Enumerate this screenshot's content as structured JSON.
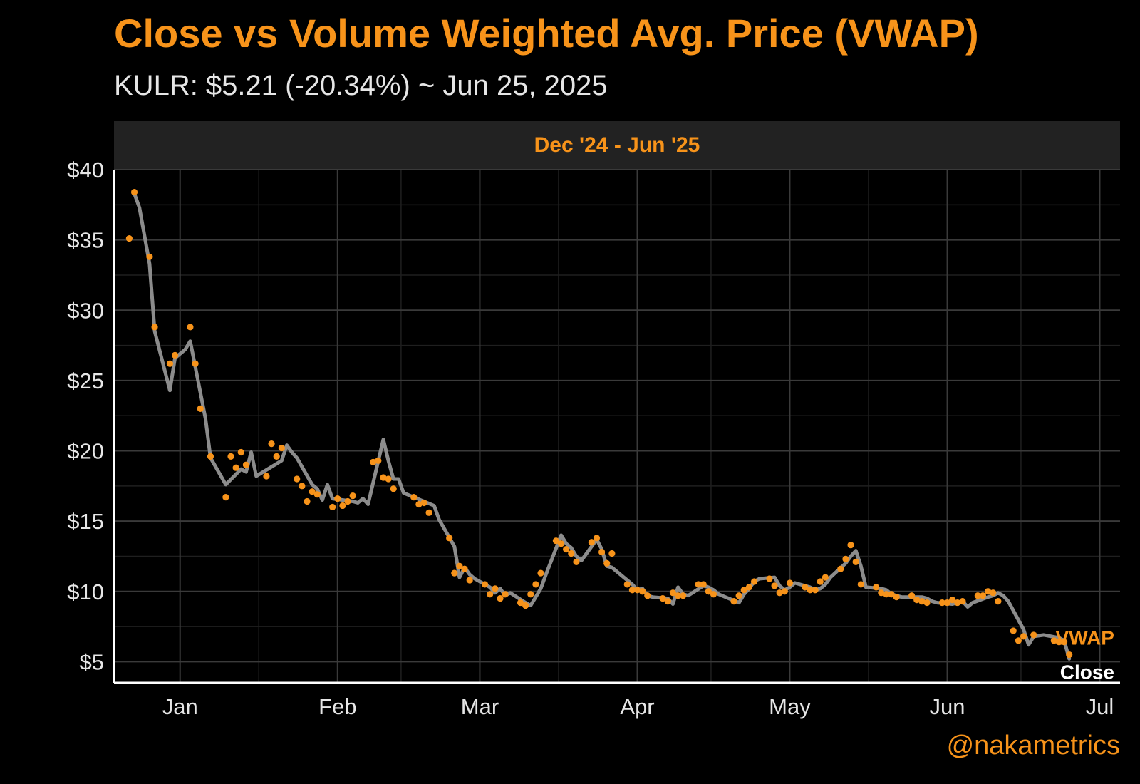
{
  "header": {
    "title": "Close vs Volume Weighted Avg. Price (VWAP)",
    "subtitle": "KULR: $5.21 (-20.34%) ~ Jun 25, 2025",
    "period": "Dec '24 - Jun '25",
    "credit": "@nakametrics"
  },
  "colors": {
    "vwap": "#f7931a",
    "close": "#8c8c8c",
    "background": "#000000",
    "grid": "#3a3a3a"
  },
  "chart_data": {
    "type": "line",
    "title": "Close vs Volume Weighted Avg. Price (VWAP)",
    "subtitle": "KULR: $5.21 (-20.34%) ~ Jun 25, 2025",
    "facet": "Dec '24 - Jun '25",
    "x_type": "date",
    "xlim": [
      "2024-12-19",
      "2025-07-05"
    ],
    "ylim": [
      3.5,
      40
    ],
    "x_ticks": [
      {
        "date": "2025-01-01",
        "label": "Jan"
      },
      {
        "date": "2025-02-01",
        "label": "Feb"
      },
      {
        "date": "2025-03-01",
        "label": "Mar"
      },
      {
        "date": "2025-04-01",
        "label": "Apr"
      },
      {
        "date": "2025-05-01",
        "label": "May"
      },
      {
        "date": "2025-06-01",
        "label": "Jun"
      },
      {
        "date": "2025-07-01",
        "label": "Jul"
      }
    ],
    "y_ticks": [
      {
        "value": 5,
        "label": "$5"
      },
      {
        "value": 10,
        "label": "$10"
      },
      {
        "value": 15,
        "label": "$15"
      },
      {
        "value": 20,
        "label": "$20"
      },
      {
        "value": 25,
        "label": "$25"
      },
      {
        "value": 30,
        "label": "$30"
      },
      {
        "value": 35,
        "label": "$35"
      },
      {
        "value": 40,
        "label": "$40"
      }
    ],
    "grid": true,
    "series": [
      {
        "name": "Close",
        "style": "line",
        "points": [
          [
            "2024-12-23",
            38.3
          ],
          [
            "2024-12-24",
            37.3
          ],
          [
            "2024-12-26",
            33.3
          ],
          [
            "2024-12-27",
            28.5
          ],
          [
            "2024-12-30",
            24.3
          ],
          [
            "2024-12-31",
            26.6
          ],
          [
            "2025-01-02",
            27.2
          ],
          [
            "2025-01-03",
            27.8
          ],
          [
            "2025-01-06",
            22.3
          ],
          [
            "2025-01-07",
            19.5
          ],
          [
            "2025-01-10",
            17.6
          ],
          [
            "2025-01-13",
            18.7
          ],
          [
            "2025-01-14",
            18.5
          ],
          [
            "2025-01-15",
            19.9
          ],
          [
            "2025-01-16",
            18.2
          ],
          [
            "2025-01-21",
            19.3
          ],
          [
            "2025-01-22",
            20.4
          ],
          [
            "2025-01-23",
            19.9
          ],
          [
            "2025-01-24",
            19.5
          ],
          [
            "2025-01-27",
            17.6
          ],
          [
            "2025-01-28",
            17.3
          ],
          [
            "2025-01-29",
            16.5
          ],
          [
            "2025-01-30",
            17.6
          ],
          [
            "2025-01-31",
            16.6
          ],
          [
            "2025-02-04",
            16.4
          ],
          [
            "2025-02-05",
            16.3
          ],
          [
            "2025-02-06",
            16.6
          ],
          [
            "2025-02-07",
            16.2
          ],
          [
            "2025-02-10",
            20.8
          ],
          [
            "2025-02-11",
            19.3
          ],
          [
            "2025-02-12",
            18.0
          ],
          [
            "2025-02-13",
            18.0
          ],
          [
            "2025-02-14",
            17.0
          ],
          [
            "2025-02-18",
            16.4
          ],
          [
            "2025-02-20",
            16.1
          ],
          [
            "2025-02-21",
            15.1
          ],
          [
            "2025-02-24",
            13.2
          ],
          [
            "2025-02-25",
            11.0
          ],
          [
            "2025-02-26",
            11.7
          ],
          [
            "2025-02-27",
            11.2
          ],
          [
            "2025-02-28",
            10.9
          ],
          [
            "2025-03-03",
            10.3
          ],
          [
            "2025-03-04",
            9.9
          ],
          [
            "2025-03-05",
            10.2
          ],
          [
            "2025-03-06",
            9.7
          ],
          [
            "2025-03-07",
            9.9
          ],
          [
            "2025-03-10",
            9.2
          ],
          [
            "2025-03-11",
            9.0
          ],
          [
            "2025-03-12",
            9.6
          ],
          [
            "2025-03-13",
            10.2
          ],
          [
            "2025-03-14",
            11.2
          ],
          [
            "2025-03-17",
            14.0
          ],
          [
            "2025-03-18",
            13.4
          ],
          [
            "2025-03-19",
            13.1
          ],
          [
            "2025-03-20",
            12.5
          ],
          [
            "2025-03-21",
            12.2
          ],
          [
            "2025-03-24",
            13.7
          ],
          [
            "2025-03-25",
            13.0
          ],
          [
            "2025-03-26",
            11.8
          ],
          [
            "2025-03-27",
            11.7
          ],
          [
            "2025-03-31",
            10.5
          ],
          [
            "2025-04-01",
            10.1
          ],
          [
            "2025-04-02",
            10.2
          ],
          [
            "2025-04-03",
            9.7
          ],
          [
            "2025-04-04",
            9.6
          ],
          [
            "2025-04-07",
            9.5
          ],
          [
            "2025-04-08",
            9.1
          ],
          [
            "2025-04-09",
            10.3
          ],
          [
            "2025-04-10",
            9.8
          ],
          [
            "2025-04-11",
            9.7
          ],
          [
            "2025-04-14",
            10.4
          ],
          [
            "2025-04-15",
            10.3
          ],
          [
            "2025-04-16",
            10.1
          ],
          [
            "2025-04-17",
            9.8
          ],
          [
            "2025-04-21",
            9.2
          ],
          [
            "2025-04-22",
            9.8
          ],
          [
            "2025-04-23",
            10.2
          ],
          [
            "2025-04-24",
            10.7
          ],
          [
            "2025-04-25",
            10.9
          ],
          [
            "2025-04-28",
            11.0
          ],
          [
            "2025-04-29",
            10.4
          ],
          [
            "2025-04-30",
            10.1
          ],
          [
            "2025-05-01",
            10.3
          ],
          [
            "2025-05-02",
            10.6
          ],
          [
            "2025-05-05",
            10.3
          ],
          [
            "2025-05-06",
            10.1
          ],
          [
            "2025-05-07",
            10.2
          ],
          [
            "2025-05-08",
            10.5
          ],
          [
            "2025-05-09",
            11.0
          ],
          [
            "2025-05-12",
            12.0
          ],
          [
            "2025-05-13",
            12.5
          ],
          [
            "2025-05-14",
            12.9
          ],
          [
            "2025-05-15",
            11.8
          ],
          [
            "2025-05-16",
            10.3
          ],
          [
            "2025-05-19",
            10.2
          ],
          [
            "2025-05-20",
            10.1
          ],
          [
            "2025-05-21",
            9.8
          ],
          [
            "2025-05-22",
            9.7
          ],
          [
            "2025-05-23",
            9.6
          ],
          [
            "2025-05-27",
            9.6
          ],
          [
            "2025-05-28",
            9.5
          ],
          [
            "2025-05-29",
            9.3
          ],
          [
            "2025-05-30",
            9.2
          ],
          [
            "2025-06-02",
            9.1
          ],
          [
            "2025-06-03",
            9.2
          ],
          [
            "2025-06-04",
            9.3
          ],
          [
            "2025-06-05",
            8.9
          ],
          [
            "2025-06-06",
            9.2
          ],
          [
            "2025-06-09",
            9.6
          ],
          [
            "2025-06-10",
            9.7
          ],
          [
            "2025-06-11",
            9.9
          ],
          [
            "2025-06-12",
            9.7
          ],
          [
            "2025-06-13",
            9.3
          ],
          [
            "2025-06-16",
            7.3
          ],
          [
            "2025-06-17",
            6.2
          ],
          [
            "2025-06-18",
            6.8
          ],
          [
            "2025-06-20",
            6.9
          ],
          [
            "2025-06-23",
            6.7
          ],
          [
            "2025-06-24",
            6.5
          ],
          [
            "2025-06-25",
            5.21
          ]
        ]
      },
      {
        "name": "VWAP",
        "style": "points",
        "points": [
          [
            "2024-12-22",
            35.1
          ],
          [
            "2024-12-23",
            38.4
          ],
          [
            "2024-12-26",
            33.8
          ],
          [
            "2024-12-27",
            28.8
          ],
          [
            "2024-12-30",
            26.2
          ],
          [
            "2024-12-31",
            26.8
          ],
          [
            "2025-01-03",
            28.8
          ],
          [
            "2025-01-04",
            26.2
          ],
          [
            "2025-01-05",
            23.0
          ],
          [
            "2025-01-07",
            19.6
          ],
          [
            "2025-01-10",
            16.7
          ],
          [
            "2025-01-11",
            19.6
          ],
          [
            "2025-01-12",
            18.8
          ],
          [
            "2025-01-13",
            19.9
          ],
          [
            "2025-01-14",
            19.0
          ],
          [
            "2025-01-18",
            18.2
          ],
          [
            "2025-01-19",
            20.5
          ],
          [
            "2025-01-20",
            19.6
          ],
          [
            "2025-01-21",
            20.2
          ],
          [
            "2025-01-24",
            18.0
          ],
          [
            "2025-01-25",
            17.5
          ],
          [
            "2025-01-26",
            16.4
          ],
          [
            "2025-01-27",
            17.1
          ],
          [
            "2025-01-28",
            16.9
          ],
          [
            "2025-01-31",
            16.0
          ],
          [
            "2025-02-01",
            16.6
          ],
          [
            "2025-02-02",
            16.1
          ],
          [
            "2025-02-03",
            16.4
          ],
          [
            "2025-02-04",
            16.8
          ],
          [
            "2025-02-08",
            19.2
          ],
          [
            "2025-02-09",
            19.3
          ],
          [
            "2025-02-10",
            18.1
          ],
          [
            "2025-02-11",
            18.0
          ],
          [
            "2025-02-12",
            17.3
          ],
          [
            "2025-02-16",
            16.7
          ],
          [
            "2025-02-17",
            16.2
          ],
          [
            "2025-02-18",
            16.3
          ],
          [
            "2025-02-19",
            15.6
          ],
          [
            "2025-02-23",
            13.8
          ],
          [
            "2025-02-24",
            11.3
          ],
          [
            "2025-02-25",
            11.8
          ],
          [
            "2025-02-26",
            11.6
          ],
          [
            "2025-02-27",
            10.8
          ],
          [
            "2025-03-02",
            10.5
          ],
          [
            "2025-03-03",
            9.8
          ],
          [
            "2025-03-04",
            10.2
          ],
          [
            "2025-03-05",
            9.5
          ],
          [
            "2025-03-06",
            9.8
          ],
          [
            "2025-03-09",
            9.2
          ],
          [
            "2025-03-10",
            9.0
          ],
          [
            "2025-03-11",
            9.8
          ],
          [
            "2025-03-12",
            10.5
          ],
          [
            "2025-03-13",
            11.3
          ],
          [
            "2025-03-16",
            13.6
          ],
          [
            "2025-03-17",
            13.4
          ],
          [
            "2025-03-18",
            13.0
          ],
          [
            "2025-03-19",
            12.7
          ],
          [
            "2025-03-20",
            12.1
          ],
          [
            "2025-03-23",
            13.5
          ],
          [
            "2025-03-24",
            13.8
          ],
          [
            "2025-03-25",
            12.8
          ],
          [
            "2025-03-26",
            12.0
          ],
          [
            "2025-03-27",
            12.7
          ],
          [
            "2025-03-30",
            10.5
          ],
          [
            "2025-03-31",
            10.1
          ],
          [
            "2025-04-01",
            10.1
          ],
          [
            "2025-04-02",
            10.0
          ],
          [
            "2025-04-03",
            9.7
          ],
          [
            "2025-04-06",
            9.5
          ],
          [
            "2025-04-07",
            9.3
          ],
          [
            "2025-04-08",
            9.9
          ],
          [
            "2025-04-09",
            9.7
          ],
          [
            "2025-04-10",
            9.7
          ],
          [
            "2025-04-13",
            10.5
          ],
          [
            "2025-04-14",
            10.5
          ],
          [
            "2025-04-15",
            10.0
          ],
          [
            "2025-04-16",
            9.8
          ],
          [
            "2025-04-20",
            9.3
          ],
          [
            "2025-04-21",
            9.7
          ],
          [
            "2025-04-22",
            10.1
          ],
          [
            "2025-04-23",
            10.3
          ],
          [
            "2025-04-24",
            10.7
          ],
          [
            "2025-04-27",
            10.9
          ],
          [
            "2025-04-28",
            10.4
          ],
          [
            "2025-04-29",
            9.9
          ],
          [
            "2025-04-30",
            10.0
          ],
          [
            "2025-05-01",
            10.6
          ],
          [
            "2025-05-04",
            10.3
          ],
          [
            "2025-05-05",
            10.1
          ],
          [
            "2025-05-06",
            10.1
          ],
          [
            "2025-05-07",
            10.7
          ],
          [
            "2025-05-08",
            11.0
          ],
          [
            "2025-05-11",
            11.6
          ],
          [
            "2025-05-12",
            12.3
          ],
          [
            "2025-05-13",
            13.3
          ],
          [
            "2025-05-14",
            12.1
          ],
          [
            "2025-05-15",
            10.5
          ],
          [
            "2025-05-18",
            10.3
          ],
          [
            "2025-05-19",
            9.9
          ],
          [
            "2025-05-20",
            9.8
          ],
          [
            "2025-05-21",
            9.8
          ],
          [
            "2025-05-22",
            9.6
          ],
          [
            "2025-05-25",
            9.7
          ],
          [
            "2025-05-26",
            9.4
          ],
          [
            "2025-05-27",
            9.3
          ],
          [
            "2025-05-28",
            9.2
          ],
          [
            "2025-05-31",
            9.2
          ],
          [
            "2025-06-01",
            9.2
          ],
          [
            "2025-06-02",
            9.4
          ],
          [
            "2025-06-03",
            9.2
          ],
          [
            "2025-06-04",
            9.3
          ],
          [
            "2025-06-07",
            9.7
          ],
          [
            "2025-06-08",
            9.7
          ],
          [
            "2025-06-09",
            10.0
          ],
          [
            "2025-06-10",
            9.9
          ],
          [
            "2025-06-11",
            9.3
          ],
          [
            "2025-06-14",
            7.2
          ],
          [
            "2025-06-15",
            6.5
          ],
          [
            "2025-06-16",
            6.8
          ],
          [
            "2025-06-18",
            6.9
          ],
          [
            "2025-06-22",
            6.5
          ],
          [
            "2025-06-23",
            6.4
          ],
          [
            "2025-06-24",
            6.4
          ],
          [
            "2025-06-25",
            5.5
          ]
        ]
      }
    ],
    "end_labels": [
      "VWAP",
      "Close"
    ]
  }
}
